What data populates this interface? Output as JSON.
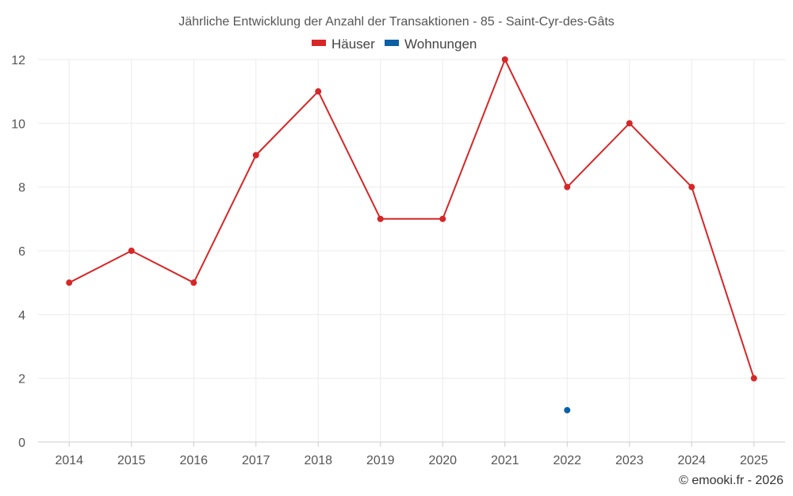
{
  "chart_data": {
    "type": "line",
    "title": "Jährliche Entwicklung der Anzahl der Transaktionen - 85 - Saint-Cyr-des-Gâts",
    "categories": [
      "2014",
      "2015",
      "2016",
      "2017",
      "2018",
      "2019",
      "2020",
      "2021",
      "2022",
      "2023",
      "2024",
      "2025"
    ],
    "series": [
      {
        "name": "Häuser",
        "color": "#d62728",
        "values": [
          5,
          6,
          5,
          9,
          11,
          7,
          7,
          12,
          8,
          10,
          8,
          2
        ]
      },
      {
        "name": "Wohnungen",
        "color": "#0b5fa5",
        "values": [
          null,
          null,
          null,
          null,
          null,
          null,
          null,
          null,
          1,
          null,
          null,
          null
        ]
      }
    ],
    "yticks": [
      "0",
      "2",
      "4",
      "6",
      "8",
      "10",
      "12"
    ],
    "ylim": [
      0,
      12
    ],
    "xlabel": "",
    "ylabel": "",
    "grid": true,
    "legend_position": "top-center"
  },
  "credit": "© emooki.fr - 2026"
}
